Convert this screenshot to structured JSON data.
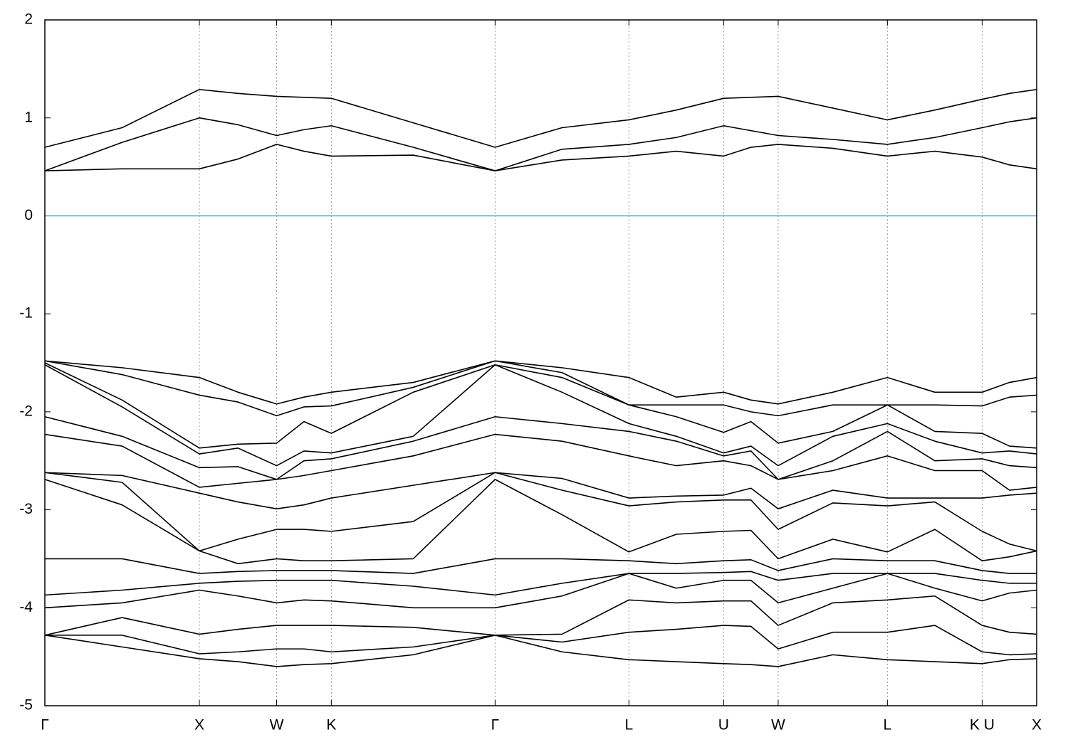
{
  "chart_data": {
    "type": "line",
    "x": [
      0,
      0.5,
      1,
      1.25,
      1.5,
      1.677,
      1.854,
      2.384,
      2.914,
      3.347,
      3.78,
      4.087,
      4.393,
      4.57,
      4.746,
      5.1,
      5.453,
      5.76,
      6.066,
      6.243,
      6.419
    ],
    "xlim": [
      0,
      6.419
    ],
    "xticks": [
      {
        "value": 0,
        "label": "Γ"
      },
      {
        "value": 1,
        "label": "X"
      },
      {
        "value": 1.5,
        "label": "W"
      },
      {
        "value": 1.854,
        "label": "K"
      },
      {
        "value": 2.914,
        "label": "Γ"
      },
      {
        "value": 3.78,
        "label": "L"
      },
      {
        "value": 4.393,
        "label": "U"
      },
      {
        "value": 4.746,
        "label": "W"
      },
      {
        "value": 5.453,
        "label": "L"
      },
      {
        "value": 6.066,
        "label": "K U"
      },
      {
        "value": 6.419,
        "label": "X"
      }
    ],
    "ylim": [
      -5,
      2
    ],
    "yticks": [
      -5,
      -4,
      -3,
      -2,
      -1,
      0,
      1,
      2
    ],
    "grid": "x",
    "hline": {
      "value": 0,
      "color": "#4aa8c8"
    },
    "series": [
      {
        "color": "#000000",
        "values": [
          0.7,
          0.9,
          1.29,
          1.25,
          1.22,
          1.21,
          1.2,
          0.95,
          0.7,
          0.9,
          0.98,
          1.08,
          1.2,
          1.21,
          1.22,
          1.1,
          0.98,
          1.08,
          1.19,
          1.25,
          1.29
        ]
      },
      {
        "color": "#000000",
        "values": [
          0.46,
          0.75,
          1.0,
          0.93,
          0.82,
          0.88,
          0.92,
          0.7,
          0.46,
          0.68,
          0.73,
          0.8,
          0.92,
          0.87,
          0.82,
          0.78,
          0.73,
          0.8,
          0.9,
          0.96,
          1.0
        ]
      },
      {
        "color": "#000000",
        "values": [
          0.46,
          0.48,
          0.48,
          0.58,
          0.73,
          0.66,
          0.61,
          0.62,
          0.46,
          0.57,
          0.61,
          0.66,
          0.61,
          0.7,
          0.73,
          0.69,
          0.61,
          0.66,
          0.6,
          0.52,
          0.48
        ]
      },
      {
        "color": "#000000",
        "values": [
          -1.48,
          -1.55,
          -1.65,
          -1.8,
          -1.92,
          -1.85,
          -1.8,
          -1.7,
          -1.48,
          -1.55,
          -1.65,
          -1.85,
          -1.8,
          -1.88,
          -1.92,
          -1.8,
          -1.65,
          -1.8,
          -1.8,
          -1.7,
          -1.65
        ]
      },
      {
        "color": "#000000",
        "values": [
          -1.48,
          -1.62,
          -1.83,
          -1.9,
          -2.04,
          -1.95,
          -1.94,
          -1.75,
          -1.48,
          -1.6,
          -1.93,
          -1.93,
          -1.93,
          -2.0,
          -2.04,
          -1.93,
          -1.93,
          -1.93,
          -1.94,
          -1.85,
          -1.83
        ]
      },
      {
        "color": "#000000",
        "values": [
          -1.5,
          -1.88,
          -2.37,
          -2.33,
          -2.32,
          -2.1,
          -2.22,
          -1.8,
          -1.52,
          -1.65,
          -1.93,
          -2.05,
          -2.21,
          -2.1,
          -2.32,
          -2.2,
          -1.93,
          -2.2,
          -2.22,
          -2.35,
          -2.37
        ]
      },
      {
        "color": "#000000",
        "values": [
          -1.52,
          -1.95,
          -2.43,
          -2.37,
          -2.55,
          -2.4,
          -2.42,
          -2.25,
          -1.52,
          -1.8,
          -2.12,
          -2.25,
          -2.42,
          -2.35,
          -2.55,
          -2.25,
          -2.12,
          -2.3,
          -2.42,
          -2.4,
          -2.43
        ]
      },
      {
        "color": "#000000",
        "values": [
          -2.05,
          -2.25,
          -2.57,
          -2.56,
          -2.69,
          -2.5,
          -2.48,
          -2.3,
          -2.05,
          -2.12,
          -2.2,
          -2.3,
          -2.45,
          -2.4,
          -2.69,
          -2.5,
          -2.2,
          -2.5,
          -2.48,
          -2.55,
          -2.57
        ]
      },
      {
        "color": "#000000",
        "values": [
          -2.23,
          -2.35,
          -2.77,
          -2.73,
          -2.69,
          -2.65,
          -2.6,
          -2.45,
          -2.23,
          -2.3,
          -2.45,
          -2.55,
          -2.5,
          -2.55,
          -2.69,
          -2.6,
          -2.45,
          -2.6,
          -2.6,
          -2.8,
          -2.77
        ]
      },
      {
        "color": "#000000",
        "values": [
          -2.62,
          -2.65,
          -2.83,
          -2.92,
          -2.99,
          -2.95,
          -2.88,
          -2.75,
          -2.62,
          -2.68,
          -2.88,
          -2.86,
          -2.85,
          -2.78,
          -2.99,
          -2.8,
          -2.88,
          -2.88,
          -2.88,
          -2.85,
          -2.83
        ]
      },
      {
        "color": "#000000",
        "values": [
          -2.62,
          -2.72,
          -3.42,
          -3.3,
          -3.2,
          -3.2,
          -3.22,
          -3.12,
          -2.62,
          -2.8,
          -2.96,
          -2.92,
          -2.9,
          -2.9,
          -3.2,
          -2.93,
          -2.96,
          -2.92,
          -3.22,
          -3.35,
          -3.42
        ]
      },
      {
        "color": "#000000",
        "values": [
          -2.69,
          -2.95,
          -3.42,
          -3.55,
          -3.5,
          -3.52,
          -3.52,
          -3.5,
          -2.69,
          -3.05,
          -3.43,
          -3.25,
          -3.22,
          -3.21,
          -3.5,
          -3.3,
          -3.43,
          -3.2,
          -3.52,
          -3.48,
          -3.42
        ]
      },
      {
        "color": "#000000",
        "values": [
          -3.5,
          -3.5,
          -3.65,
          -3.63,
          -3.62,
          -3.62,
          -3.62,
          -3.65,
          -3.5,
          -3.5,
          -3.52,
          -3.55,
          -3.52,
          -3.51,
          -3.62,
          -3.5,
          -3.52,
          -3.52,
          -3.62,
          -3.65,
          -3.65
        ]
      },
      {
        "color": "#000000",
        "values": [
          -3.87,
          -3.82,
          -3.75,
          -3.73,
          -3.72,
          -3.72,
          -3.72,
          -3.78,
          -3.87,
          -3.75,
          -3.65,
          -3.65,
          -3.64,
          -3.63,
          -3.72,
          -3.65,
          -3.65,
          -3.65,
          -3.72,
          -3.75,
          -3.75
        ]
      },
      {
        "color": "#000000",
        "values": [
          -4.0,
          -3.95,
          -3.82,
          -3.88,
          -3.95,
          -3.92,
          -3.93,
          -4.0,
          -4.0,
          -3.88,
          -3.65,
          -3.8,
          -3.72,
          -3.72,
          -3.95,
          -3.8,
          -3.65,
          -3.8,
          -3.93,
          -3.85,
          -3.82
        ]
      },
      {
        "color": "#000000",
        "values": [
          -4.28,
          -4.1,
          -4.27,
          -4.22,
          -4.18,
          -4.18,
          -4.18,
          -4.2,
          -4.28,
          -4.27,
          -3.92,
          -3.95,
          -3.93,
          -3.93,
          -4.18,
          -3.95,
          -3.92,
          -3.88,
          -4.18,
          -4.25,
          -4.27
        ]
      },
      {
        "color": "#000000",
        "values": [
          -4.28,
          -4.28,
          -4.47,
          -4.45,
          -4.42,
          -4.42,
          -4.45,
          -4.4,
          -4.28,
          -4.35,
          -4.25,
          -4.22,
          -4.18,
          -4.19,
          -4.42,
          -4.25,
          -4.25,
          -4.18,
          -4.45,
          -4.48,
          -4.47
        ]
      },
      {
        "color": "#000000",
        "values": [
          -4.28,
          -4.4,
          -4.52,
          -4.55,
          -4.6,
          -4.58,
          -4.57,
          -4.48,
          -4.28,
          -4.45,
          -4.53,
          -4.55,
          -4.57,
          -4.58,
          -4.6,
          -4.48,
          -4.53,
          -4.55,
          -4.57,
          -4.53,
          -4.52
        ]
      }
    ]
  }
}
